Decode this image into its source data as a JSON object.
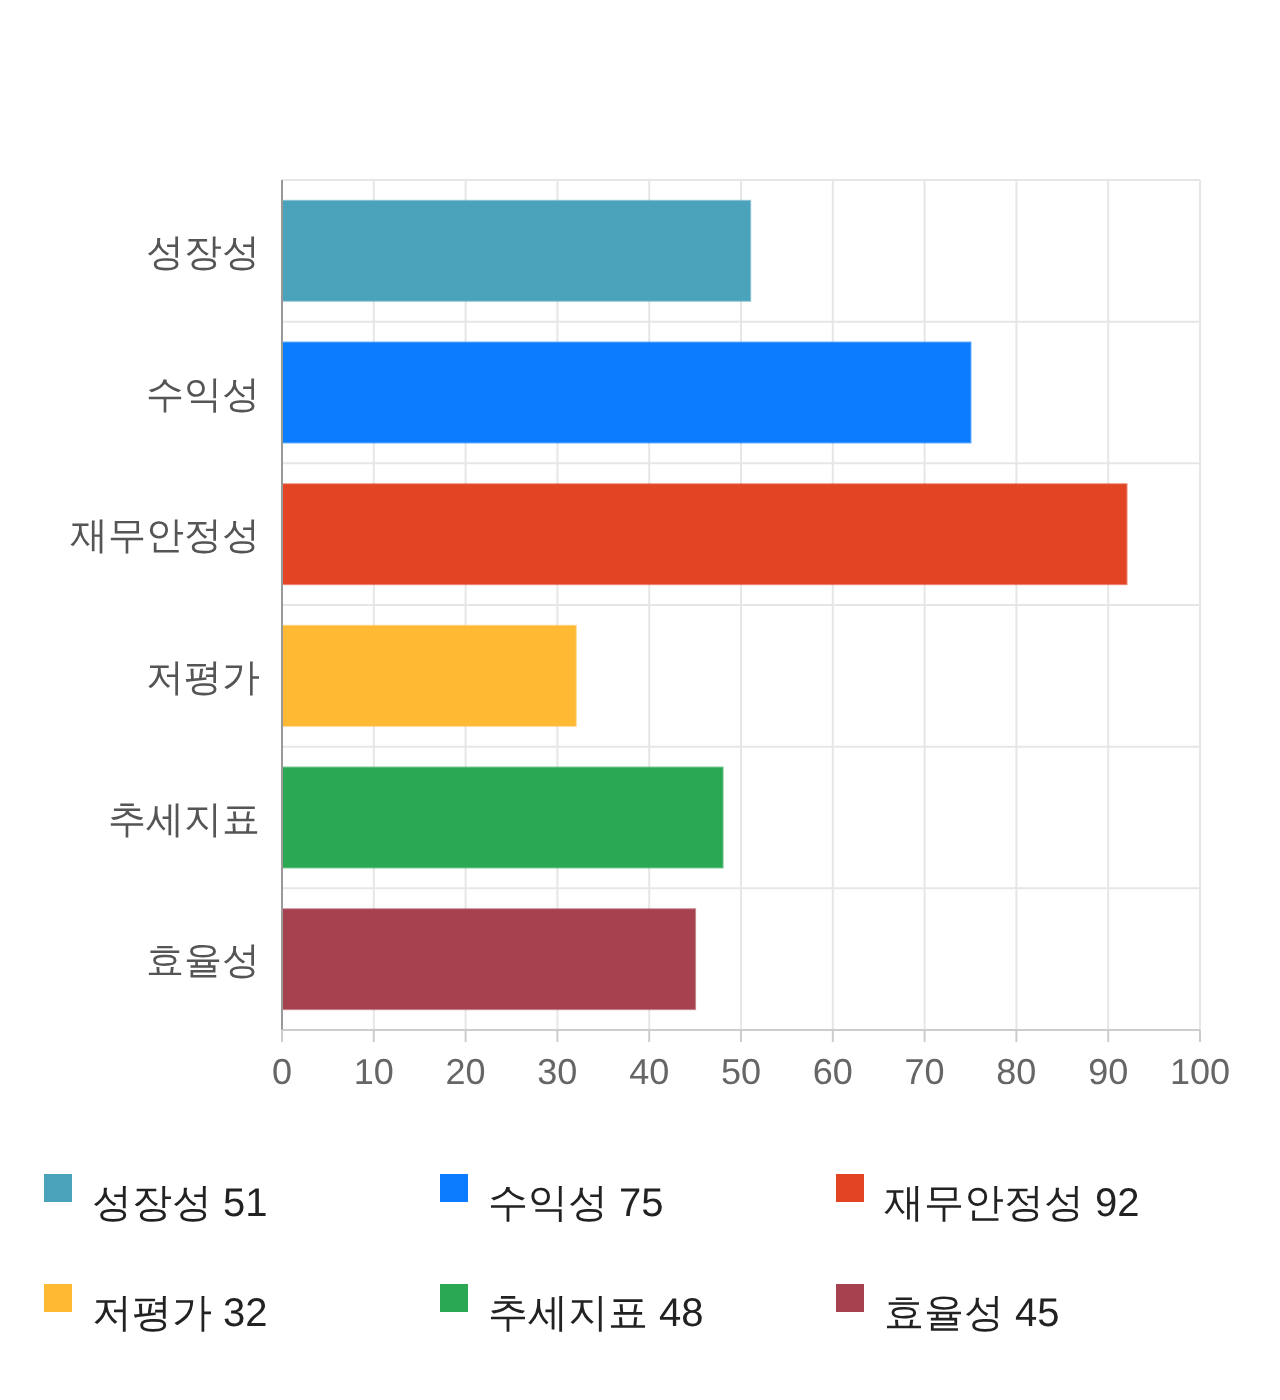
{
  "chart_data": {
    "type": "bar",
    "orientation": "horizontal",
    "stacked": true,
    "categories": [
      "성장성",
      "수익성",
      "재무안정성",
      "저평가",
      "추세지표",
      "효율성"
    ],
    "series": [
      {
        "name": "성장성 51",
        "color": "#4ba3bb",
        "values": [
          51,
          null,
          null,
          null,
          null,
          null
        ]
      },
      {
        "name": "수익성 75",
        "color": "#0a7cff",
        "values": [
          null,
          75,
          null,
          null,
          null,
          null
        ]
      },
      {
        "name": "재무안정성 92",
        "color": "#e24424",
        "values": [
          null,
          null,
          92,
          null,
          null,
          null
        ]
      },
      {
        "name": "저평가 32",
        "color": "#ffb933",
        "values": [
          null,
          null,
          null,
          32,
          null,
          null
        ]
      },
      {
        "name": "추세지표 48",
        "color": "#2aa854",
        "values": [
          null,
          null,
          null,
          null,
          48,
          null
        ]
      },
      {
        "name": "효율성 45",
        "color": "#a6424f",
        "values": [
          null,
          null,
          null,
          null,
          null,
          45
        ]
      }
    ],
    "xlim": [
      0,
      100
    ],
    "xticks": [
      0,
      10,
      20,
      30,
      40,
      50,
      60,
      70,
      80,
      90,
      100
    ],
    "grid": true,
    "legend": "bottom"
  }
}
